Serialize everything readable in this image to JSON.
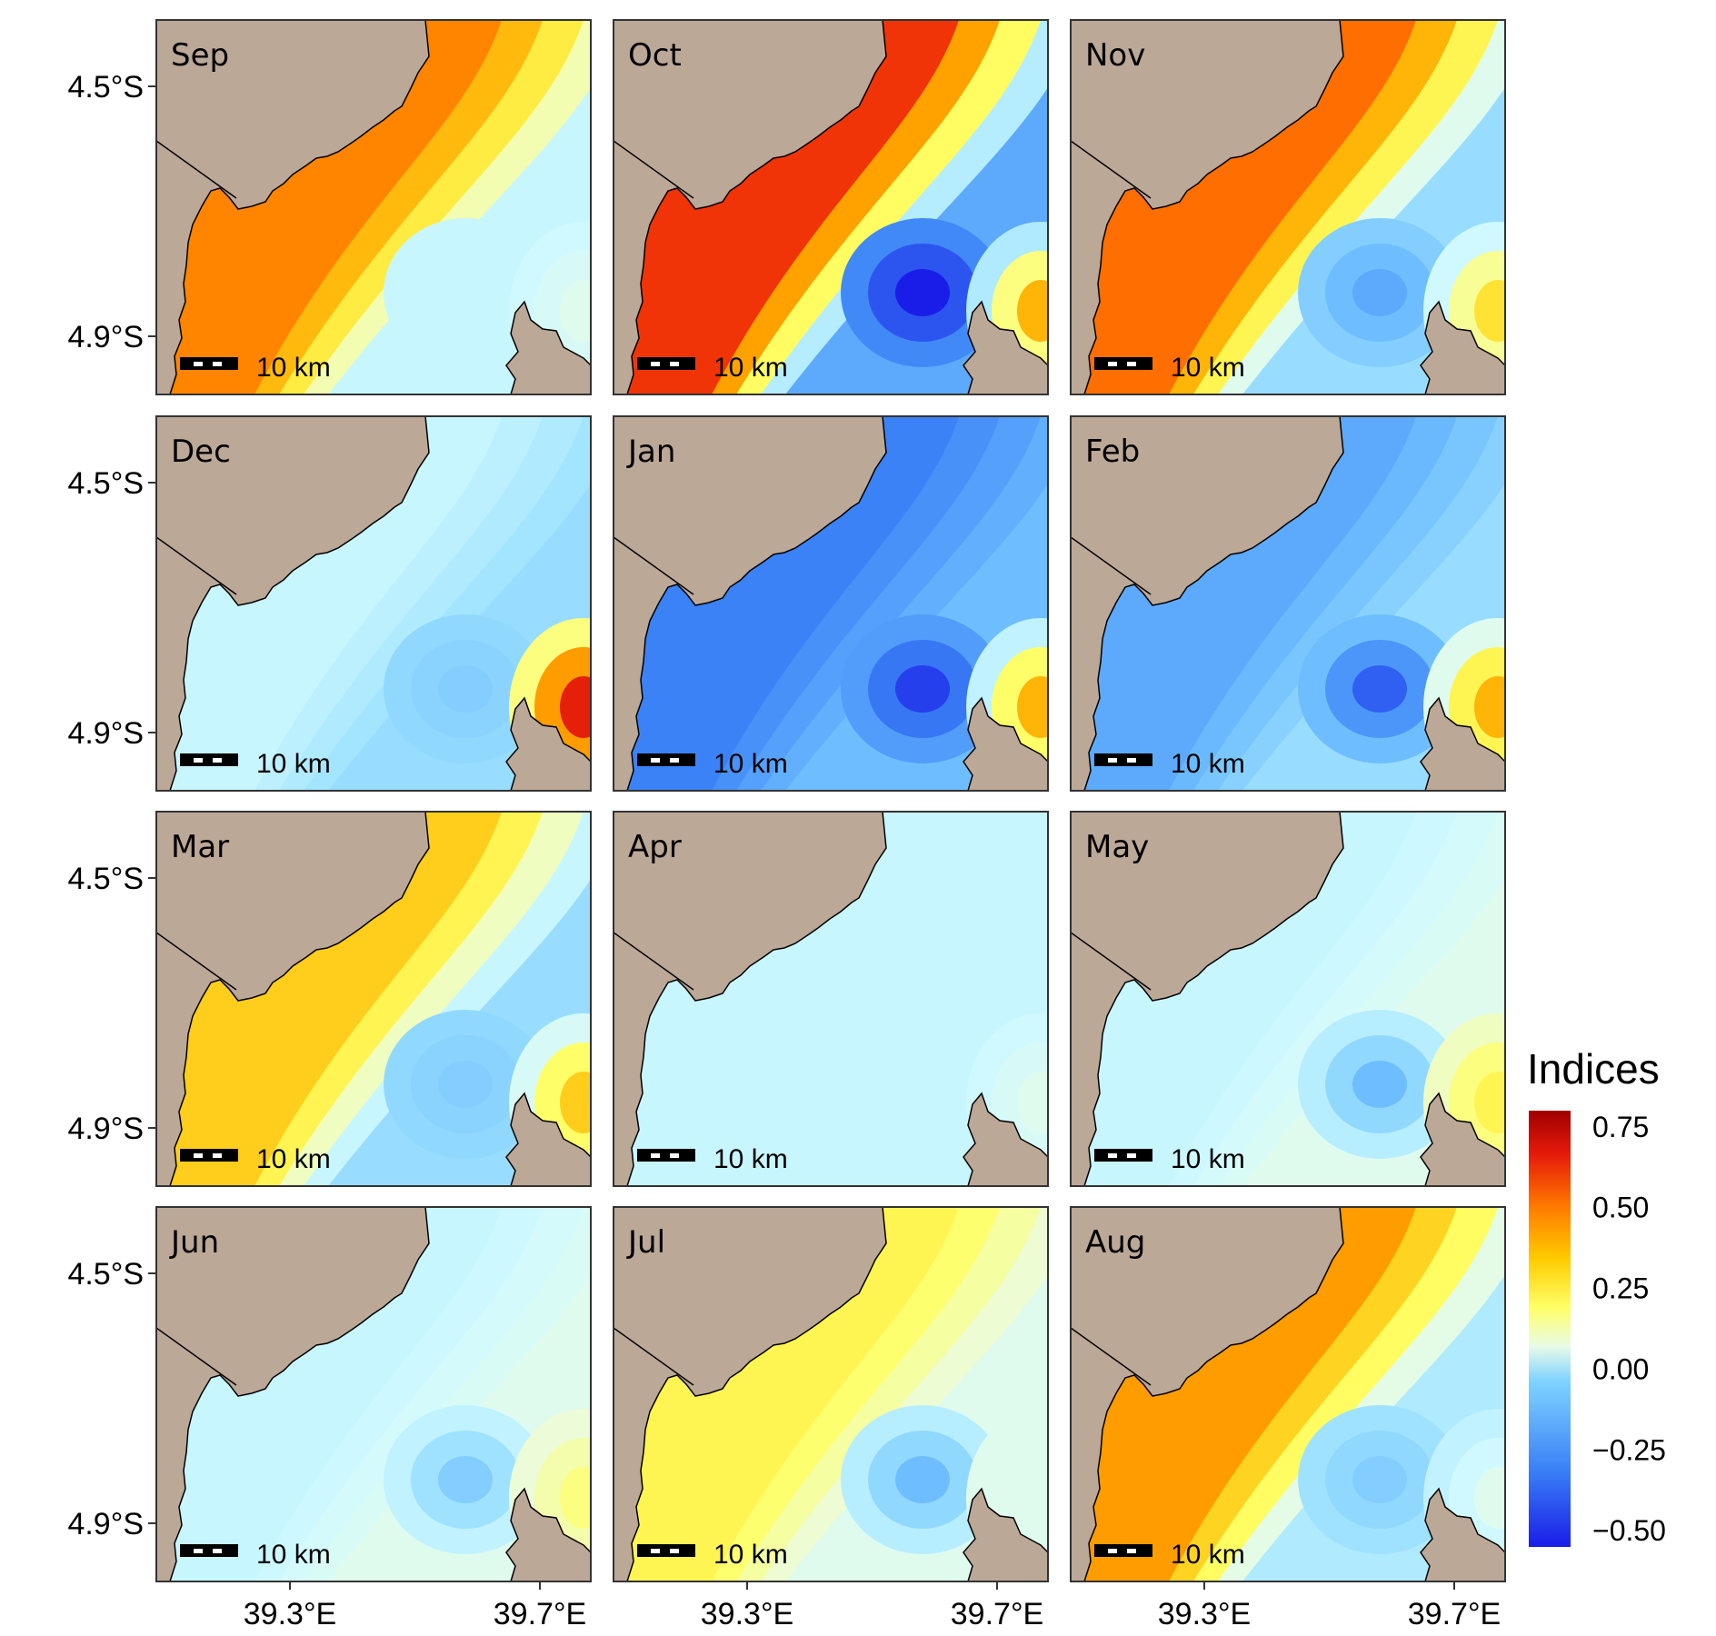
{
  "figure": {
    "lat_labels": [
      "4.5°S",
      "4.9°S"
    ],
    "lon_labels": [
      "39.3°E",
      "39.7°E"
    ],
    "scale_bar_label": "10 km"
  },
  "panels": [
    {
      "month": "Sep",
      "coastal": 0.4,
      "offshore": -0.05,
      "warm_patch": 0.0,
      "cold_patch": -0.05
    },
    {
      "month": "Oct",
      "coastal": 0.55,
      "offshore": -0.3,
      "warm_patch": 0.3,
      "cold_patch": -0.55
    },
    {
      "month": "Nov",
      "coastal": 0.45,
      "offshore": -0.15,
      "warm_patch": 0.2,
      "cold_patch": -0.3
    },
    {
      "month": "Dec",
      "coastal": -0.05,
      "offshore": -0.15,
      "warm_patch": 0.6,
      "cold_patch": -0.2
    },
    {
      "month": "Jan",
      "coastal": -0.4,
      "offshore": -0.25,
      "warm_patch": 0.3,
      "cold_patch": -0.5
    },
    {
      "month": "Feb",
      "coastal": -0.3,
      "offshore": -0.15,
      "warm_patch": 0.3,
      "cold_patch": -0.45
    },
    {
      "month": "Mar",
      "coastal": 0.25,
      "offshore": -0.15,
      "warm_patch": 0.25,
      "cold_patch": -0.2
    },
    {
      "month": "Apr",
      "coastal": -0.05,
      "offshore": -0.05,
      "warm_patch": 0.0,
      "cold_patch": -0.05
    },
    {
      "month": "May",
      "coastal": -0.05,
      "offshore": 0.0,
      "warm_patch": 0.15,
      "cold_patch": -0.25
    },
    {
      "month": "Jun",
      "coastal": -0.05,
      "offshore": 0.0,
      "warm_patch": 0.1,
      "cold_patch": -0.2
    },
    {
      "month": "Jul",
      "coastal": 0.15,
      "offshore": 0.0,
      "warm_patch": 0.0,
      "cold_patch": -0.25
    },
    {
      "month": "Aug",
      "coastal": 0.35,
      "offshore": -0.1,
      "warm_patch": 0.0,
      "cold_patch": -0.2
    }
  ],
  "legend": {
    "title": "Indices",
    "ticks": [
      "0.75",
      "0.50",
      "0.25",
      "0.00",
      "−0.25",
      "−0.50"
    ],
    "tick_values": [
      0.75,
      0.5,
      0.25,
      0.0,
      -0.25,
      -0.5
    ],
    "min": -0.55,
    "max": 0.8
  },
  "colors": {
    "land": "#bca897",
    "coast_line": "#000000",
    "scale_bar": "#000000"
  }
}
